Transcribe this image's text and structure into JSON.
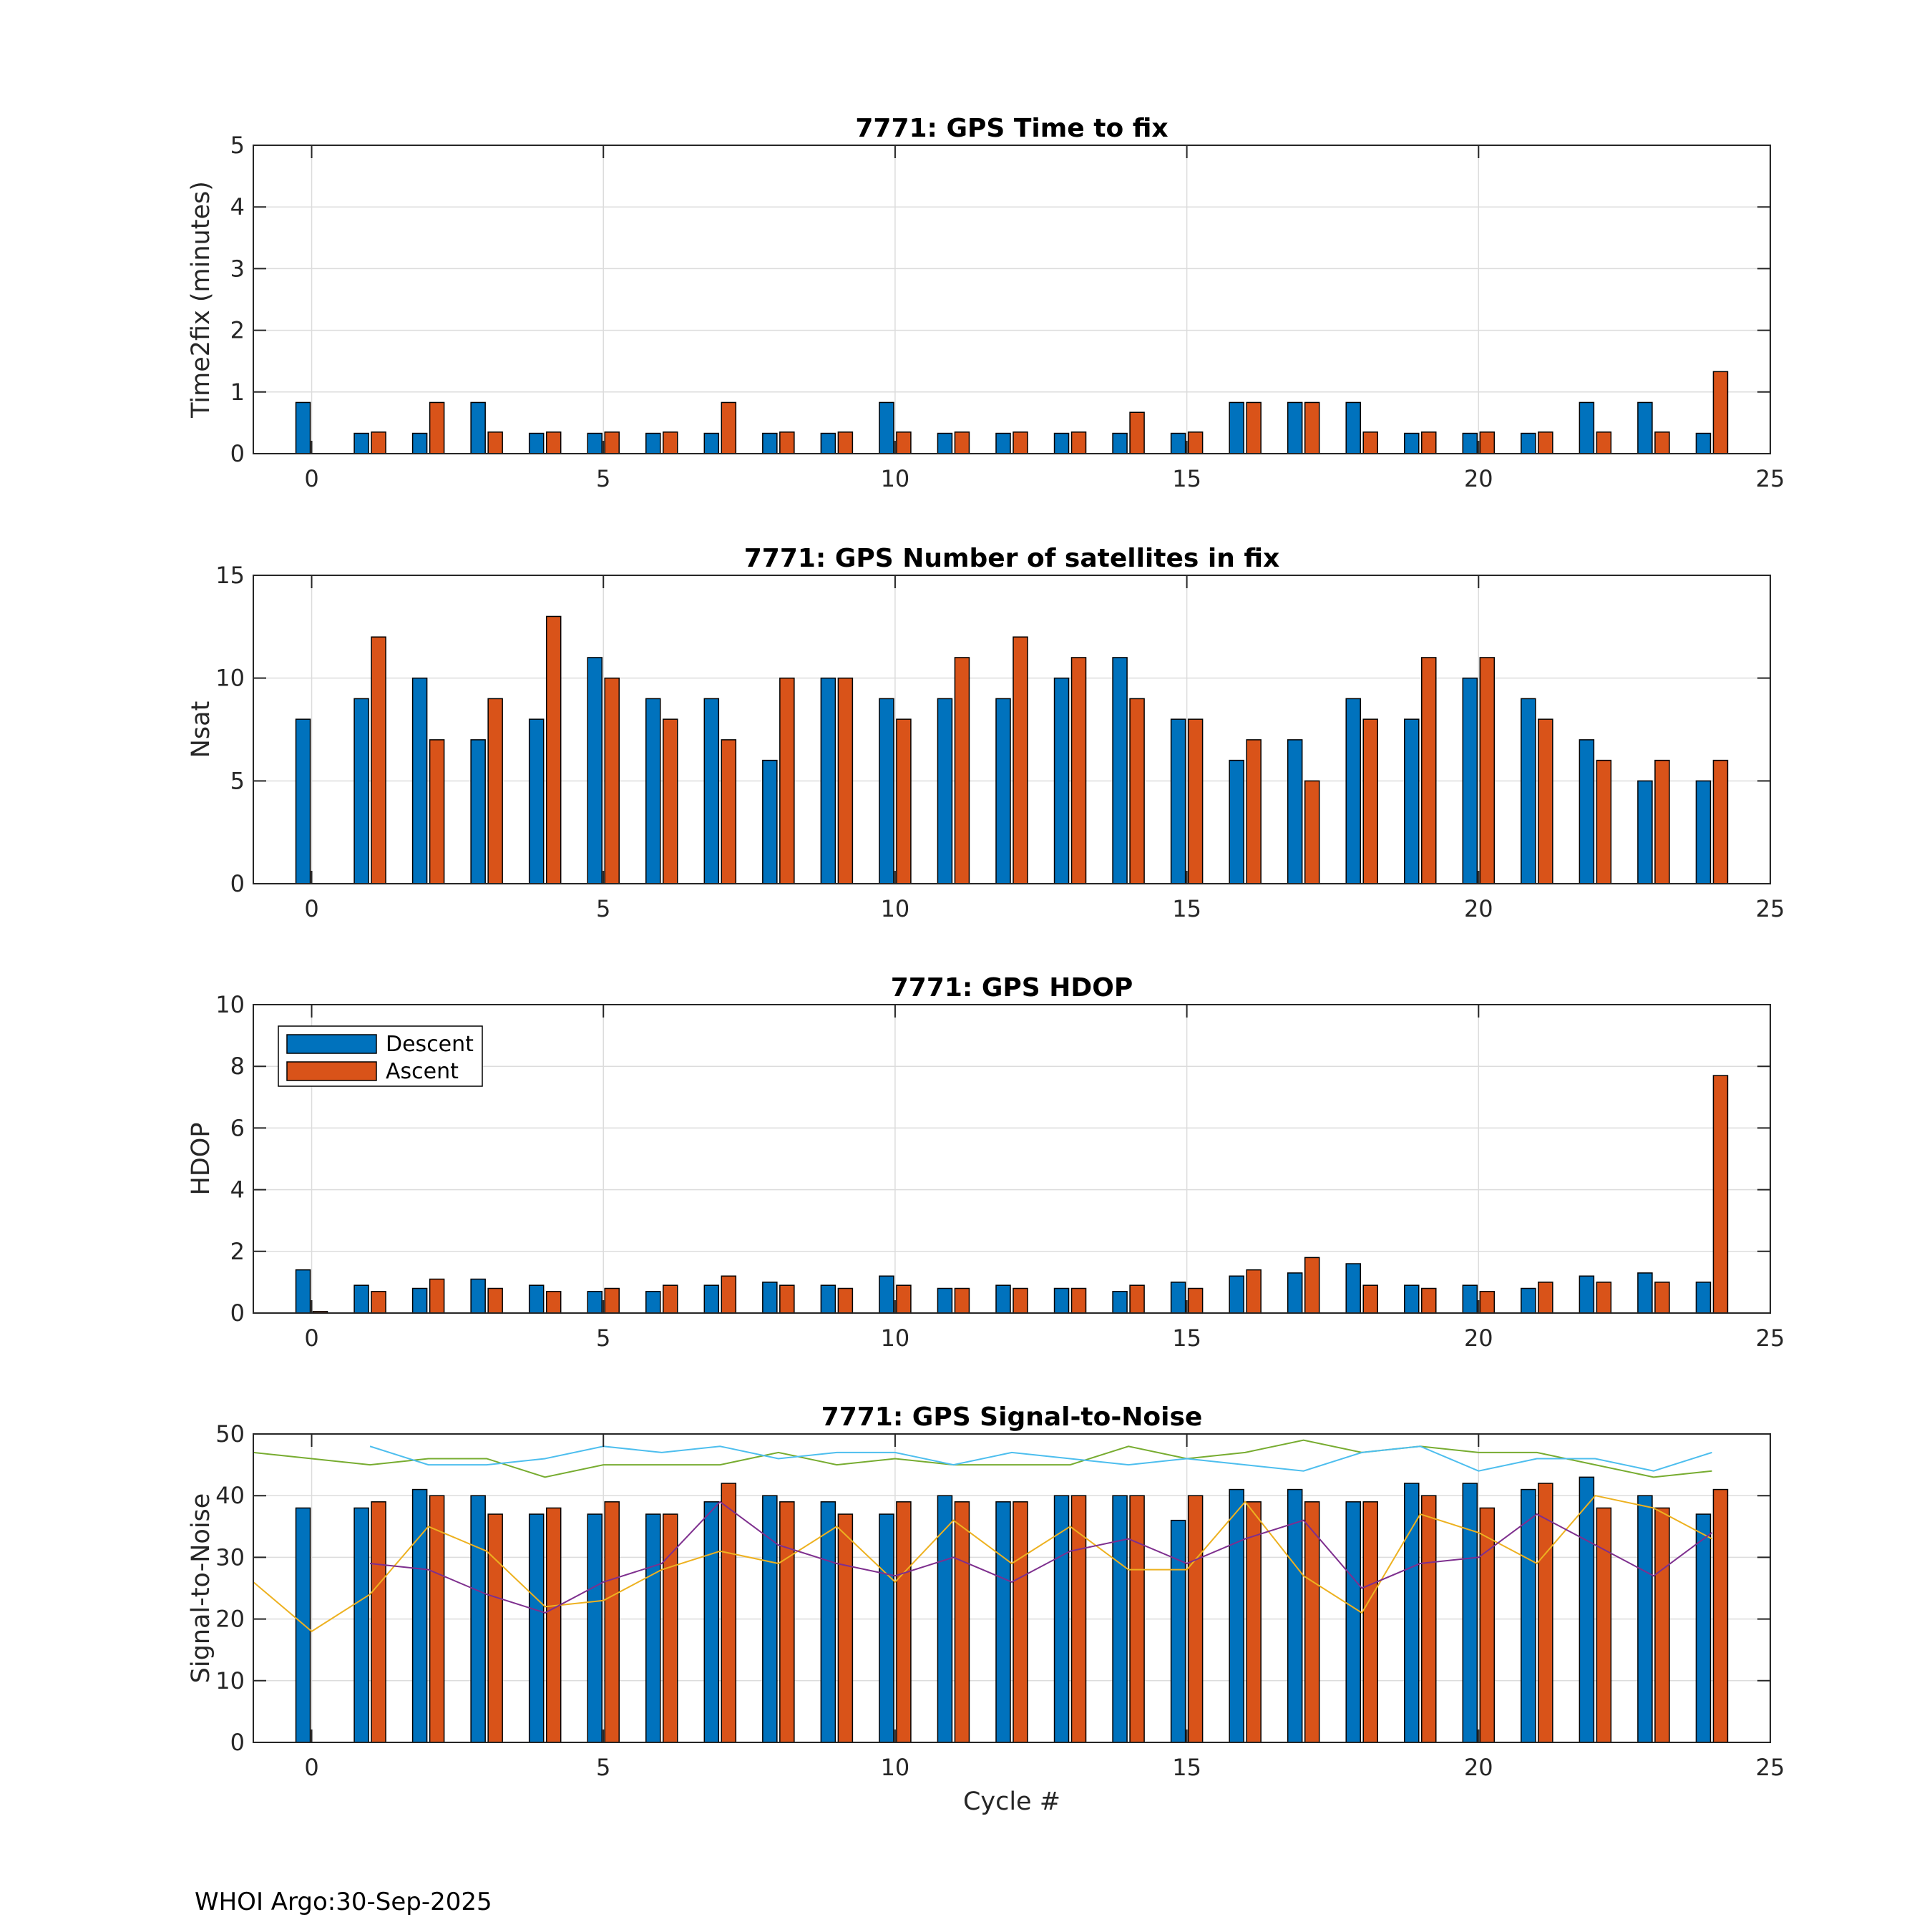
{
  "footer": "WHOI Argo:30-Sep-2025",
  "colors": {
    "descent": "#0072BD",
    "ascent": "#D95319",
    "snr_cyan": "#4DBEEE",
    "snr_green": "#77AC30",
    "snr_yellow": "#EDB120",
    "snr_purple": "#7E2F8E",
    "grid": "#dcdcdc",
    "axis": "#262626"
  },
  "chart_data": [
    {
      "type": "bar",
      "title": "7771: GPS Time to fix",
      "xlabel": "",
      "ylabel": "Time2fix (minutes)",
      "xlim": [
        -1,
        25
      ],
      "ylim": [
        0,
        5
      ],
      "xticks": [
        0,
        5,
        10,
        15,
        20,
        25
      ],
      "yticks": [
        0,
        1,
        2,
        3,
        4,
        5
      ],
      "grid": true,
      "x": [
        0,
        1,
        2,
        3,
        4,
        5,
        6,
        7,
        8,
        9,
        10,
        11,
        12,
        13,
        14,
        15,
        16,
        17,
        18,
        19,
        20,
        21,
        22,
        23,
        24
      ],
      "series": [
        {
          "name": "Descent",
          "values": [
            0.83,
            0.33,
            0.33,
            0.83,
            0.33,
            0.33,
            0.33,
            0.33,
            0.33,
            0.33,
            0.83,
            0.33,
            0.33,
            0.33,
            0.33,
            0.33,
            0.83,
            0.83,
            0.83,
            0.33,
            0.33,
            0.33,
            0.83,
            0.83,
            0.33
          ]
        },
        {
          "name": "Ascent",
          "values": [
            0,
            0.35,
            0.83,
            0.35,
            0.35,
            0.35,
            0.35,
            0.83,
            0.35,
            0.35,
            0.35,
            0.35,
            0.35,
            0.35,
            0.67,
            0.35,
            0.83,
            0.83,
            0.35,
            0.35,
            0.35,
            0.35,
            0.35,
            0.35,
            1.33
          ]
        }
      ]
    },
    {
      "type": "bar",
      "title": "7771: GPS Number of satellites in fix",
      "xlabel": "",
      "ylabel": "Nsat",
      "xlim": [
        -1,
        25
      ],
      "ylim": [
        0,
        15
      ],
      "xticks": [
        0,
        5,
        10,
        15,
        20,
        25
      ],
      "yticks": [
        0,
        5,
        10,
        15
      ],
      "grid": true,
      "x": [
        0,
        1,
        2,
        3,
        4,
        5,
        6,
        7,
        8,
        9,
        10,
        11,
        12,
        13,
        14,
        15,
        16,
        17,
        18,
        19,
        20,
        21,
        22,
        23,
        24
      ],
      "series": [
        {
          "name": "Descent",
          "values": [
            8,
            9,
            10,
            7,
            8,
            11,
            9,
            9,
            6,
            10,
            9,
            9,
            9,
            10,
            11,
            8,
            6,
            7,
            9,
            8,
            10,
            9,
            7,
            5,
            5
          ]
        },
        {
          "name": "Ascent",
          "values": [
            0,
            12,
            7,
            9,
            13,
            10,
            8,
            7,
            10,
            10,
            8,
            11,
            12,
            11,
            9,
            8,
            7,
            5,
            8,
            11,
            11,
            8,
            6,
            6,
            6
          ]
        }
      ]
    },
    {
      "type": "bar",
      "title": "7771: GPS HDOP",
      "xlabel": "",
      "ylabel": "HDOP",
      "xlim": [
        -1,
        25
      ],
      "ylim": [
        0,
        10
      ],
      "xticks": [
        0,
        5,
        10,
        15,
        20,
        25
      ],
      "yticks": [
        0,
        2,
        4,
        6,
        8,
        10
      ],
      "grid": true,
      "legend": {
        "position": "top-left",
        "entries": [
          "Descent",
          "Ascent"
        ]
      },
      "x": [
        0,
        1,
        2,
        3,
        4,
        5,
        6,
        7,
        8,
        9,
        10,
        11,
        12,
        13,
        14,
        15,
        16,
        17,
        18,
        19,
        20,
        21,
        22,
        23,
        24
      ],
      "series": [
        {
          "name": "Descent",
          "values": [
            1.4,
            0.9,
            0.8,
            1.1,
            0.9,
            0.7,
            0.7,
            0.9,
            1.0,
            0.9,
            1.2,
            0.8,
            0.9,
            0.8,
            0.7,
            1.0,
            1.2,
            1.3,
            1.6,
            0.9,
            0.9,
            0.8,
            1.2,
            1.3,
            1.0
          ]
        },
        {
          "name": "Ascent",
          "values": [
            0.05,
            0.7,
            1.1,
            0.8,
            0.7,
            0.8,
            0.9,
            1.2,
            0.9,
            0.8,
            0.9,
            0.8,
            0.8,
            0.8,
            0.9,
            0.8,
            1.4,
            1.8,
            0.9,
            0.8,
            0.7,
            1.0,
            1.0,
            1.0,
            7.7
          ]
        }
      ]
    },
    {
      "type": "bar",
      "title": "7771: GPS Signal-to-Noise",
      "xlabel": "Cycle #",
      "ylabel": "Signal-to-Noise",
      "xlim": [
        -1,
        25
      ],
      "ylim": [
        0,
        50
      ],
      "xticks": [
        0,
        5,
        10,
        15,
        20,
        25
      ],
      "yticks": [
        0,
        10,
        20,
        30,
        40,
        50
      ],
      "grid": true,
      "x": [
        0,
        1,
        2,
        3,
        4,
        5,
        6,
        7,
        8,
        9,
        10,
        11,
        12,
        13,
        14,
        15,
        16,
        17,
        18,
        19,
        20,
        21,
        22,
        23,
        24
      ],
      "series": [
        {
          "name": "Descent",
          "values": [
            38,
            38,
            41,
            40,
            37,
            37,
            37,
            39,
            40,
            39,
            37,
            40,
            39,
            40,
            40,
            36,
            41,
            41,
            39,
            42,
            42,
            41,
            43,
            40,
            37
          ]
        },
        {
          "name": "Ascent",
          "values": [
            0,
            39,
            40,
            37,
            38,
            39,
            37,
            42,
            39,
            37,
            39,
            39,
            39,
            40,
            40,
            40,
            39,
            39,
            39,
            40,
            38,
            42,
            38,
            38,
            41
          ]
        }
      ],
      "lines": [
        {
          "name": "snr_green",
          "x": [
            -1,
            0,
            1,
            2,
            3,
            4,
            5,
            6,
            7,
            8,
            9,
            10,
            11,
            12,
            13,
            14,
            15,
            16,
            17,
            18,
            19,
            20,
            21,
            22,
            23,
            24
          ],
          "values": [
            47,
            46,
            45,
            46,
            46,
            43,
            45,
            45,
            45,
            47,
            45,
            46,
            45,
            45,
            45,
            48,
            46,
            47,
            49,
            47,
            48,
            47,
            47,
            45,
            43,
            44
          ]
        },
        {
          "name": "snr_cyan",
          "x": [
            1,
            2,
            3,
            4,
            5,
            6,
            7,
            8,
            9,
            10,
            11,
            12,
            13,
            14,
            15,
            16,
            17,
            18,
            19,
            20,
            21,
            22,
            23,
            24
          ],
          "values": [
            48,
            45,
            45,
            46,
            48,
            47,
            48,
            46,
            47,
            47,
            45,
            47,
            46,
            45,
            46,
            45,
            44,
            47,
            48,
            44,
            46,
            46,
            44,
            47
          ]
        },
        {
          "name": "snr_yellow",
          "x": [
            -1,
            0,
            1,
            2,
            3,
            4,
            5,
            6,
            7,
            8,
            9,
            10,
            11,
            12,
            13,
            14,
            15,
            16,
            17,
            18,
            19,
            20,
            21,
            22,
            23,
            24
          ],
          "values": [
            26,
            18,
            24,
            35,
            31,
            22,
            23,
            28,
            31,
            29,
            35,
            26,
            36,
            29,
            35,
            28,
            28,
            39,
            27,
            21,
            37,
            34,
            29,
            40,
            38,
            33
          ]
        },
        {
          "name": "snr_purple",
          "x": [
            1,
            2,
            3,
            4,
            5,
            6,
            7,
            8,
            9,
            10,
            11,
            12,
            13,
            14,
            15,
            16,
            17,
            18,
            19,
            20,
            21,
            22,
            23,
            24
          ],
          "values": [
            29,
            28,
            24,
            21,
            26,
            29,
            39,
            32,
            29,
            27,
            30,
            26,
            31,
            33,
            29,
            33,
            36,
            25,
            29,
            30,
            37,
            32,
            27,
            34
          ]
        }
      ]
    }
  ]
}
